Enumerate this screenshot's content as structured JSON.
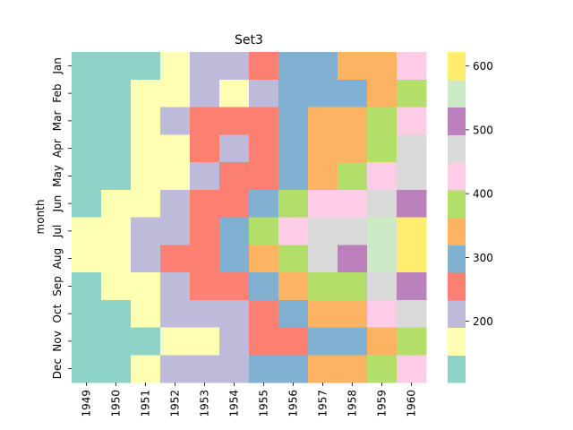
{
  "chart_data": {
    "type": "heatmap",
    "title": "Set3",
    "xlabel": "",
    "ylabel": "month",
    "x": [
      "1949",
      "1950",
      "1951",
      "1952",
      "1953",
      "1954",
      "1955",
      "1956",
      "1957",
      "1958",
      "1959",
      "1960"
    ],
    "y": [
      "Jan",
      "Feb",
      "Mar",
      "Apr",
      "May",
      "Jun",
      "Jul",
      "Aug",
      "Sep",
      "Oct",
      "Nov",
      "Dec"
    ],
    "values": [
      [
        112,
        115,
        145,
        171,
        196,
        204,
        242,
        284,
        315,
        340,
        360,
        417
      ],
      [
        118,
        126,
        150,
        180,
        196,
        188,
        233,
        277,
        301,
        318,
        342,
        391
      ],
      [
        132,
        141,
        178,
        193,
        236,
        235,
        267,
        317,
        356,
        362,
        406,
        419
      ],
      [
        129,
        135,
        163,
        181,
        235,
        227,
        269,
        313,
        348,
        348,
        396,
        461
      ],
      [
        121,
        125,
        172,
        183,
        229,
        234,
        270,
        318,
        355,
        363,
        420,
        472
      ],
      [
        135,
        149,
        178,
        218,
        243,
        264,
        315,
        374,
        422,
        435,
        472,
        535
      ],
      [
        148,
        170,
        199,
        230,
        264,
        302,
        364,
        413,
        465,
        491,
        548,
        622
      ],
      [
        148,
        170,
        199,
        242,
        272,
        293,
        347,
        405,
        467,
        505,
        559,
        606
      ],
      [
        136,
        158,
        184,
        209,
        237,
        259,
        312,
        355,
        404,
        404,
        463,
        508
      ],
      [
        119,
        133,
        162,
        191,
        211,
        229,
        274,
        306,
        347,
        359,
        407,
        461
      ],
      [
        104,
        114,
        146,
        172,
        180,
        203,
        237,
        271,
        305,
        310,
        362,
        390
      ],
      [
        118,
        140,
        166,
        194,
        201,
        229,
        278,
        306,
        336,
        337,
        405,
        432
      ]
    ],
    "vmin": 104,
    "vmax": 622,
    "colormap": "Set3",
    "palette": [
      "#8dd3c7",
      "#ffffb3",
      "#bebada",
      "#fb8072",
      "#80b1d3",
      "#fdb462",
      "#b3de69",
      "#fccde5",
      "#d9d9d9",
      "#bc80bd",
      "#ccebc5",
      "#ffed6f"
    ],
    "colorbar": {
      "ticks": [
        200,
        300,
        400,
        500,
        600
      ],
      "tick_labels": [
        "200",
        "300",
        "400",
        "500",
        "600"
      ]
    }
  }
}
